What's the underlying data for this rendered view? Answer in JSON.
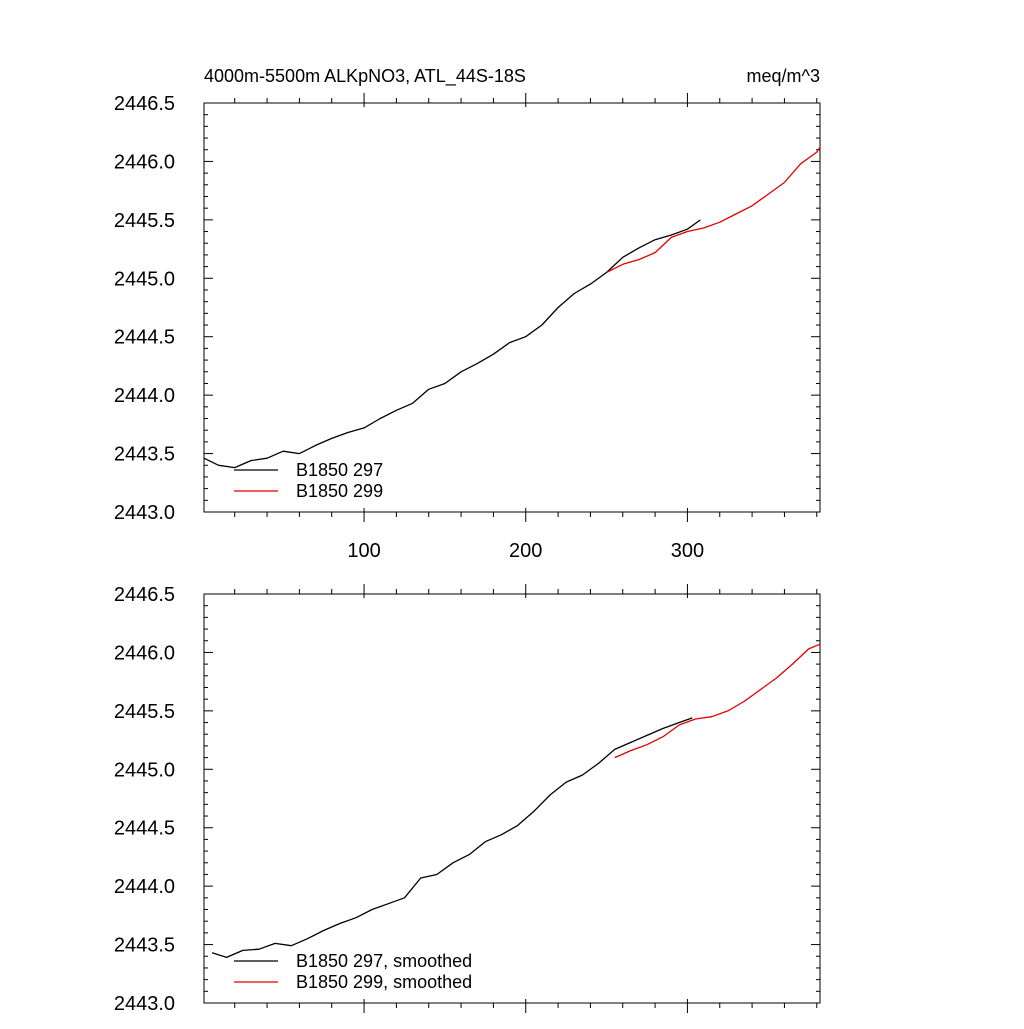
{
  "figure": {
    "title_left": "4000m-5500m ALKpNO3, ATL_44S-18S",
    "title_right": "meq/m^3"
  },
  "chart_data": [
    {
      "type": "line",
      "panel": "top",
      "xlim": [
        1,
        382
      ],
      "ylim": [
        2443.0,
        2446.5
      ],
      "x_ticks": [
        100,
        200,
        300
      ],
      "x_tick_labels": [
        "100",
        "200",
        "300"
      ],
      "y_ticks": [
        2443.0,
        2443.5,
        2444.0,
        2444.5,
        2445.0,
        2445.5,
        2446.0,
        2446.5
      ],
      "y_tick_labels": [
        "2443.0",
        "2443.5",
        "2444.0",
        "2444.5",
        "2445.0",
        "2445.5",
        "2446.0",
        "2446.5"
      ],
      "legend": "bottom-left",
      "series": [
        {
          "name": "B1850 297",
          "color": "#000000",
          "x": [
            1,
            10,
            20,
            30,
            40,
            50,
            60,
            70,
            80,
            90,
            100,
            110,
            120,
            130,
            140,
            150,
            160,
            170,
            180,
            190,
            200,
            210,
            220,
            230,
            240,
            250,
            260,
            270,
            280,
            290,
            300,
            308
          ],
          "y": [
            2443.46,
            2443.4,
            2443.38,
            2443.44,
            2443.46,
            2443.52,
            2443.5,
            2443.57,
            2443.63,
            2443.68,
            2443.72,
            2443.8,
            2443.87,
            2443.93,
            2444.05,
            2444.1,
            2444.2,
            2444.27,
            2444.35,
            2444.45,
            2444.5,
            2444.6,
            2444.75,
            2444.87,
            2444.95,
            2445.05,
            2445.18,
            2445.26,
            2445.33,
            2445.37,
            2445.42,
            2445.5
          ]
        },
        {
          "name": "B1850 299",
          "color": "#e00000",
          "x": [
            250,
            260,
            270,
            280,
            290,
            300,
            310,
            320,
            330,
            340,
            350,
            360,
            370,
            380,
            382
          ],
          "y": [
            2445.05,
            2445.12,
            2445.16,
            2445.22,
            2445.35,
            2445.4,
            2445.43,
            2445.48,
            2445.55,
            2445.62,
            2445.72,
            2445.82,
            2445.98,
            2446.08,
            2446.12
          ]
        }
      ]
    },
    {
      "type": "line",
      "panel": "bottom",
      "xlim": [
        1,
        382
      ],
      "ylim": [
        2443.0,
        2446.5
      ],
      "x_ticks": [
        100,
        200,
        300
      ],
      "y_ticks": [
        2443.0,
        2443.5,
        2444.0,
        2444.5,
        2445.0,
        2445.5,
        2446.0,
        2446.5
      ],
      "y_tick_labels": [
        "2443.0",
        "2443.5",
        "2444.0",
        "2444.5",
        "2445.0",
        "2445.5",
        "2446.0",
        "2446.5"
      ],
      "legend": "bottom-left",
      "series": [
        {
          "name": "B1850 297, smoothed",
          "color": "#000000",
          "x": [
            6,
            15,
            25,
            35,
            45,
            55,
            65,
            75,
            85,
            95,
            105,
            115,
            125,
            135,
            145,
            155,
            165,
            175,
            185,
            195,
            205,
            215,
            225,
            235,
            245,
            255,
            265,
            275,
            285,
            295,
            303
          ],
          "y": [
            2443.43,
            2443.39,
            2443.45,
            2443.46,
            2443.51,
            2443.49,
            2443.55,
            2443.62,
            2443.68,
            2443.73,
            2443.8,
            2443.85,
            2443.9,
            2444.07,
            2444.1,
            2444.2,
            2444.27,
            2444.38,
            2444.44,
            2444.52,
            2444.64,
            2444.78,
            2444.89,
            2444.95,
            2445.05,
            2445.17,
            2445.23,
            2445.29,
            2445.35,
            2445.4,
            2445.44
          ]
        },
        {
          "name": "B1850 299, smoothed",
          "color": "#e00000",
          "x": [
            255,
            265,
            275,
            285,
            295,
            305,
            315,
            325,
            335,
            345,
            355,
            365,
            375,
            382
          ],
          "y": [
            2445.1,
            2445.16,
            2445.21,
            2445.28,
            2445.38,
            2445.43,
            2445.45,
            2445.5,
            2445.58,
            2445.68,
            2445.78,
            2445.9,
            2446.03,
            2446.07
          ]
        }
      ]
    }
  ]
}
